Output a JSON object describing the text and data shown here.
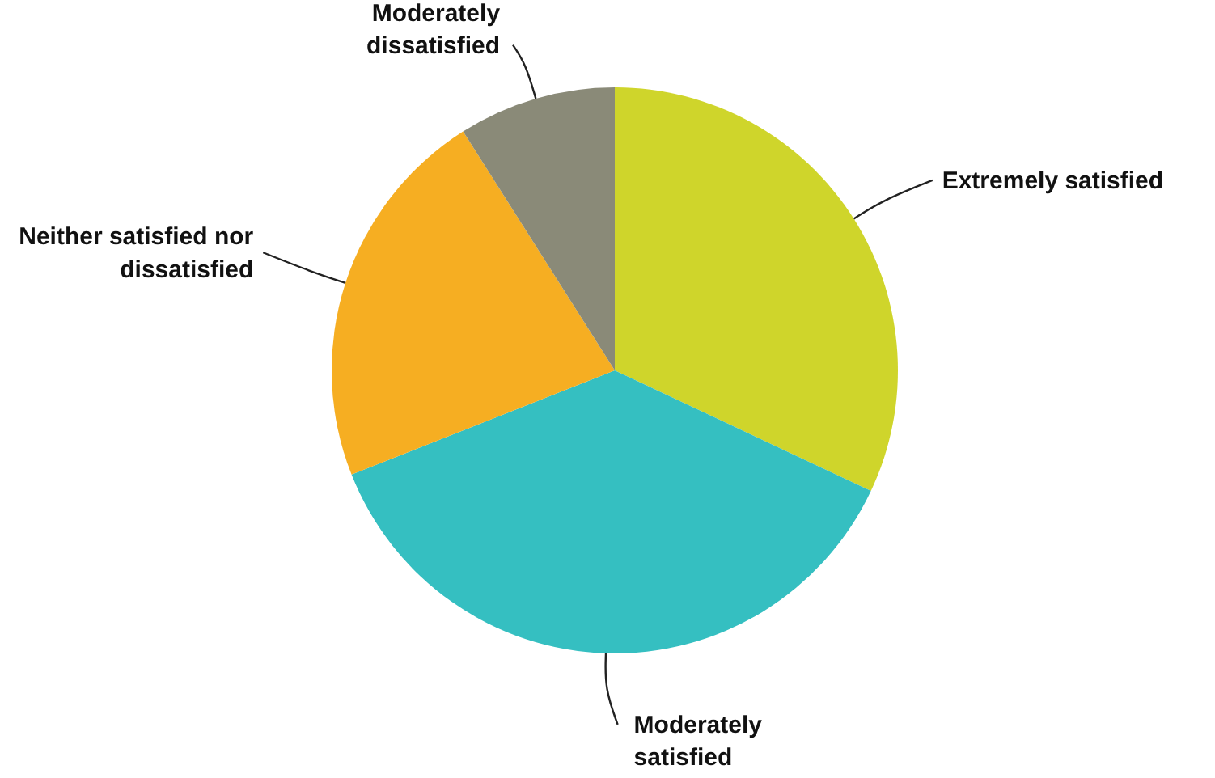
{
  "chart_data": {
    "type": "pie",
    "categories": [
      "Extremely satisfied",
      "Moderately satisfied",
      "Neither satisfied nor dissatisfied",
      "Moderately dissatisfied"
    ],
    "values": [
      32,
      37,
      22,
      9
    ],
    "colors": [
      "#cfd52b",
      "#35bfc1",
      "#f6ae22",
      "#8a8a78"
    ]
  }
}
